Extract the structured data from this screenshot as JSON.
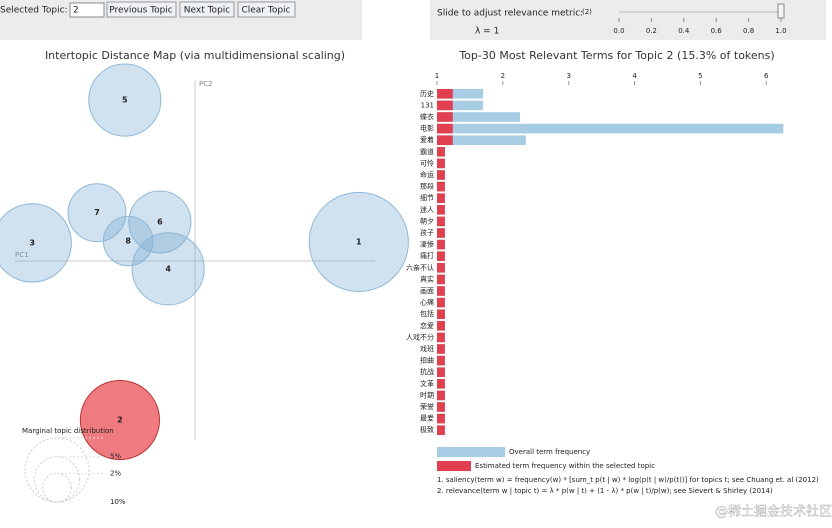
{
  "controls": {
    "selected_topic_label": "Selected Topic:",
    "selected_topic": "2",
    "buttons": [
      "Previous Topic",
      "Next Topic",
      "Clear Topic"
    ],
    "slider_label": "Slide to adjust relevance metric:",
    "slider_note": "(2)",
    "lambda_label": "λ = 1",
    "slider_value": 1,
    "slider_lim": [
      0,
      1
    ],
    "slider_ticks": [
      {
        "value": 0,
        "label": "0.0"
      },
      {
        "value": 0.2,
        "label": "0.2"
      },
      {
        "value": 0.4,
        "label": "0.4"
      },
      {
        "value": 0.6,
        "label": "0.6"
      },
      {
        "value": 0.8,
        "label": "0.8"
      },
      {
        "value": 1,
        "label": "1.0"
      }
    ]
  },
  "topic_map": {
    "title": "Intertopic Distance Map (via multidimensional scaling)",
    "x_label": "PC1",
    "y_label": "PC2",
    "xlim": [
      -0.4,
      0.4
    ],
    "ylim": [
      -0.37,
      0.37
    ],
    "selected": "2",
    "topics": [
      {
        "label": "5",
        "x": -0.144,
        "y": 0.33,
        "size": 12.7
      },
      {
        "label": "7",
        "x": -0.201,
        "y": 0.099,
        "size": 8.2
      },
      {
        "label": "6",
        "x": -0.072,
        "y": 0.08,
        "size": 9.4
      },
      {
        "label": "3",
        "x": -0.334,
        "y": 0.037,
        "size": 15
      },
      {
        "label": "8",
        "x": -0.137,
        "y": 0.041,
        "size": 6
      },
      {
        "label": "4",
        "x": -0.055,
        "y": -0.016,
        "size": 12.7
      },
      {
        "label": "1",
        "x": 0.336,
        "y": 0.039,
        "size": 24
      },
      {
        "label": "2",
        "x": -0.154,
        "y": -0.326,
        "size": 15.3
      }
    ],
    "marginal_title": "Marginal topic distribution",
    "marginal": [
      {
        "value": 2,
        "label": "2%"
      },
      {
        "value": 5,
        "label": "5%"
      },
      {
        "value": 10,
        "label": "10%"
      }
    ]
  },
  "terms": {
    "title": "Top-30 Most Relevant Terms for Topic 2 (15.3% of tokens)",
    "xlim": [
      1,
      6.3
    ],
    "xticks": [
      1,
      2,
      3,
      4,
      5,
      6
    ],
    "terms": [
      "历史",
      "131",
      "蝶衣",
      "电影",
      "爱着",
      "霸道",
      "可怜",
      "命运",
      "那段",
      "细节",
      "迷人",
      "朝夕",
      "孩子",
      "凄惨",
      "痛打",
      "六亲不认",
      "真实",
      "画面",
      "心痛",
      "包括",
      "恋爱",
      "人戏不分",
      "戏班",
      "招曲",
      "抗战",
      "文革",
      "时期",
      "荣誉",
      "最爱",
      "极致"
    ],
    "overall": [
      1.7,
      1.7,
      2.26,
      6.26,
      2.35,
      1.12,
      1.12,
      1.12,
      1.12,
      1.12,
      1.12,
      1.12,
      1.12,
      1.12,
      1.12,
      1.12,
      1.12,
      1.12,
      1.12,
      1.12,
      1.12,
      1.12,
      1.12,
      1.12,
      1.12,
      1.12,
      1.12,
      1.12,
      1.12,
      1.12
    ],
    "estimated": [
      1.24,
      1.24,
      1.24,
      1.24,
      1.24,
      1.12,
      1.12,
      1.12,
      1.12,
      1.12,
      1.12,
      1.12,
      1.12,
      1.12,
      1.12,
      1.12,
      1.12,
      1.12,
      1.12,
      1.12,
      1.12,
      1.12,
      1.12,
      1.12,
      1.12,
      1.12,
      1.12,
      1.12,
      1.12,
      1.12
    ],
    "overall_color": "#a6cde3",
    "estimated_color": "#e0404f",
    "legend": [
      "Overall term frequency",
      "Estimated term frequency within the selected topic"
    ],
    "footnotes": [
      "1. saliency(term w) = frequency(w) * [sum_t p(t | w) * log(p(t | w)/p(t))] for topics t; see Chuang et. al (2012)",
      "2. relevance(term w | topic t) = λ * p(w | t) + (1 - λ) * p(w | t)/p(w); see Sievert & Shirley (2014)"
    ]
  },
  "watermark": "@稀土掘金技术社区"
}
